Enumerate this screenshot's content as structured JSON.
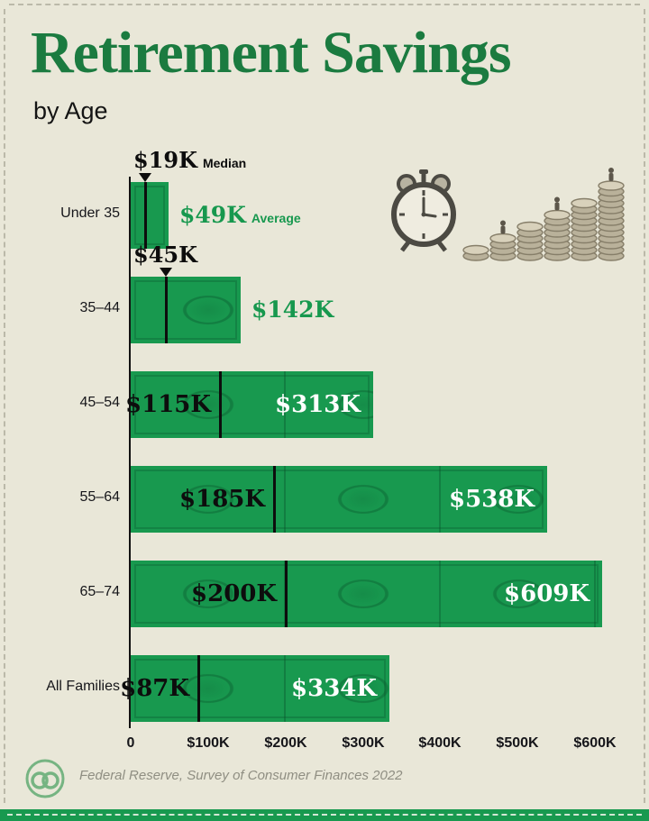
{
  "title": "Retirement Savings",
  "subtitle": "by Age",
  "source": "Federal Reserve, Survey of Consumer Finances 2022",
  "colors": {
    "background": "#e9e7d8",
    "title_green": "#1b7b40",
    "bar_green": "#18994f",
    "accent_green_text": "#17984e",
    "ink": "#121212",
    "white": "#ffffff",
    "source_gray": "#8f8e82"
  },
  "icons": [
    "alarm-clock-icon",
    "coin-stacks-icon",
    "publisher-logo"
  ],
  "chart_data": {
    "type": "bar",
    "orientation": "horizontal",
    "title": "Retirement Savings by Age",
    "unit": "USD thousands",
    "xlim": [
      0,
      600
    ],
    "grid": false,
    "legend_position": "inline",
    "x_ticks": [
      {
        "value": 0,
        "label": "0"
      },
      {
        "value": 100,
        "label": "$100K"
      },
      {
        "value": 200,
        "label": "$200K"
      },
      {
        "value": 300,
        "label": "$300K"
      },
      {
        "value": 400,
        "label": "$400K"
      },
      {
        "value": 500,
        "label": "$500K"
      },
      {
        "value": 600,
        "label": "$600K"
      }
    ],
    "series_names": [
      "Median",
      "Average"
    ],
    "rows": [
      {
        "category": "Under 35",
        "median_k": 19,
        "average_k": 49,
        "median_label": "$19K",
        "average_label": "$49K",
        "median_suffix": "Median",
        "average_suffix": "Average",
        "label_style": "outside"
      },
      {
        "category": "35–44",
        "median_k": 45,
        "average_k": 142,
        "median_label": "$45K",
        "average_label": "$142K",
        "median_suffix": "",
        "average_suffix": "",
        "label_style": "outside"
      },
      {
        "category": "45–54",
        "median_k": 115,
        "average_k": 313,
        "median_label": "$115K",
        "average_label": "$313K",
        "median_suffix": "",
        "average_suffix": "",
        "label_style": "inside"
      },
      {
        "category": "55–64",
        "median_k": 185,
        "average_k": 538,
        "median_label": "$185K",
        "average_label": "$538K",
        "median_suffix": "",
        "average_suffix": "",
        "label_style": "inside"
      },
      {
        "category": "65–74",
        "median_k": 200,
        "average_k": 609,
        "median_label": "$200K",
        "average_label": "$609K",
        "median_suffix": "",
        "average_suffix": "",
        "label_style": "inside"
      },
      {
        "category": "All Families",
        "median_k": 87,
        "average_k": 334,
        "median_label": "$87K",
        "average_label": "$334K",
        "median_suffix": "",
        "average_suffix": "",
        "label_style": "inside"
      }
    ]
  }
}
